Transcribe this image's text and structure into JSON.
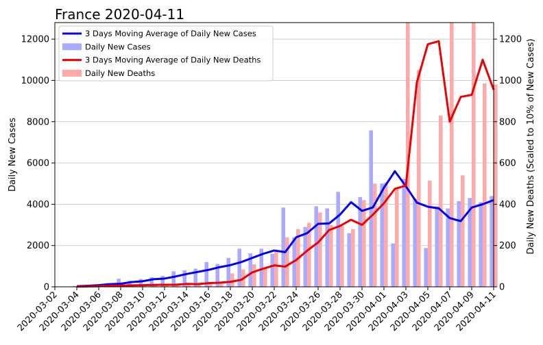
{
  "chart_data": {
    "type": "bar",
    "title": "France  2020-04-11",
    "xlabel": "",
    "ylabel": "Daily New Cases",
    "y2label": "Daily New Deaths (Scaled to 10% of New Cases)",
    "ylim": [
      0,
      12800
    ],
    "y2lim": [
      0,
      1280
    ],
    "yticks": [
      0,
      2000,
      4000,
      6000,
      8000,
      10000,
      12000
    ],
    "y2ticks": [
      0,
      200,
      400,
      600,
      800,
      1000,
      1200
    ],
    "grid": true,
    "legend_position": "top-left",
    "colors": {
      "cases_line": "#0000ee",
      "cases_bar": "#aaaaff",
      "deaths_line": "#ee0000",
      "deaths_bar": "#ffaaaa"
    },
    "xtick_labels": [
      "2020-03-02",
      "2020-03-04",
      "2020-03-06",
      "2020-03-08",
      "2020-03-10",
      "2020-03-12",
      "2020-03-14",
      "2020-03-16",
      "2020-03-18",
      "2020-03-20",
      "2020-03-22",
      "2020-03-24",
      "2020-03-26",
      "2020-03-28",
      "2020-03-30",
      "2020-04-01",
      "2020-04-03",
      "2020-04-05",
      "2020-04-07",
      "2020-04-09",
      "2020-04-11"
    ],
    "dates": [
      "2020-03-04",
      "2020-03-05",
      "2020-03-06",
      "2020-03-07",
      "2020-03-08",
      "2020-03-09",
      "2020-03-10",
      "2020-03-11",
      "2020-03-12",
      "2020-03-13",
      "2020-03-14",
      "2020-03-15",
      "2020-03-16",
      "2020-03-17",
      "2020-03-18",
      "2020-03-19",
      "2020-03-20",
      "2020-03-21",
      "2020-03-22",
      "2020-03-23",
      "2020-03-24",
      "2020-03-25",
      "2020-03-26",
      "2020-03-27",
      "2020-03-28",
      "2020-03-29",
      "2020-03-30",
      "2020-03-31",
      "2020-04-01",
      "2020-04-02",
      "2020-04-03",
      "2020-04-04",
      "2020-04-05",
      "2020-04-06",
      "2020-04-07",
      "2020-04-08",
      "2020-04-09",
      "2020-04-10",
      "2020-04-11"
    ],
    "series": [
      {
        "name": "3 Days Moving Average of Daily New Cases",
        "kind": "line",
        "axis": "left",
        "values": [
          30,
          50,
          80,
          130,
          150,
          230,
          270,
          370,
          400,
          500,
          620,
          720,
          820,
          950,
          1050,
          1200,
          1400,
          1600,
          1760,
          1680,
          2400,
          2600,
          3050,
          3070,
          3500,
          4100,
          3680,
          3850,
          4800,
          5600,
          4870,
          4080,
          3880,
          3800,
          3330,
          3180,
          3840,
          4000,
          4200
        ]
      },
      {
        "name": "Daily New Cases",
        "kind": "bar",
        "axis": "left",
        "values": [
          40,
          60,
          100,
          180,
          390,
          290,
          380,
          470,
          530,
          750,
          800,
          880,
          1200,
          1110,
          1400,
          1850,
          1620,
          1850,
          1600,
          3840,
          2400,
          2900,
          3900,
          3800,
          4600,
          2600,
          4350,
          7580,
          5000,
          2100,
          5230,
          4270,
          1880,
          3900,
          3800,
          4150,
          4300,
          4100,
          4400
        ]
      },
      {
        "name": "3 Days Moving Average of Daily New Deaths",
        "kind": "line",
        "axis": "right",
        "values": [
          1,
          2,
          3,
          5,
          6,
          7,
          8,
          9,
          10,
          10,
          14,
          13,
          18,
          20,
          24,
          34,
          70,
          88,
          104,
          98,
          130,
          175,
          215,
          275,
          295,
          325,
          300,
          350,
          405,
          475,
          490,
          990,
          1175,
          1190,
          800,
          920,
          930,
          1100,
          955
        ]
      },
      {
        "name": "Daily New Deaths",
        "kind": "bar",
        "axis": "right",
        "values": [
          1,
          2,
          3,
          5,
          6,
          8,
          10,
          12,
          13,
          15,
          16,
          15,
          20,
          25,
          65,
          84,
          110,
          90,
          180,
          240,
          280,
          310,
          360,
          300,
          295,
          280,
          420,
          500,
          505,
          480,
          1280,
          1050,
          515,
          830,
          1280,
          540,
          1280,
          985,
          980
        ]
      }
    ]
  }
}
